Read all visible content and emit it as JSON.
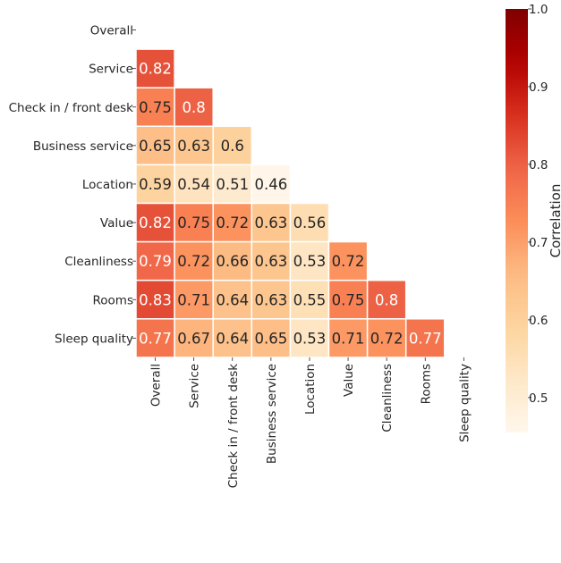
{
  "chart_data": {
    "type": "heatmap",
    "title": "",
    "xlabel": "",
    "ylabel": "",
    "rows": [
      "Overall",
      "Service",
      "Check in / front desk",
      "Business service",
      "Location",
      "Value",
      "Cleanliness",
      "Rooms",
      "Sleep quality"
    ],
    "columns": [
      "Overall",
      "Service",
      "Check in / front desk",
      "Business service",
      "Location",
      "Value",
      "Cleanliness",
      "Rooms",
      "Sleep quality"
    ],
    "values": [
      [],
      [
        0.82
      ],
      [
        0.75,
        0.8
      ],
      [
        0.65,
        0.63,
        0.6
      ],
      [
        0.59,
        0.54,
        0.51,
        0.46
      ],
      [
        0.82,
        0.75,
        0.72,
        0.63,
        0.56
      ],
      [
        0.79,
        0.72,
        0.66,
        0.63,
        0.53,
        0.72
      ],
      [
        0.83,
        0.71,
        0.64,
        0.63,
        0.55,
        0.75,
        0.8
      ],
      [
        0.77,
        0.67,
        0.64,
        0.65,
        0.53,
        0.71,
        0.72,
        0.77
      ]
    ],
    "mask": "upper triangle including diagonal",
    "colorbar": {
      "label": "Correlation",
      "range": [
        0.455,
        1.0
      ],
      "ticks": [
        "0.5",
        "0.6",
        "0.7",
        "0.8",
        "0.9",
        "1.0"
      ],
      "colormap": "OrRd",
      "position": "right"
    },
    "colors": {
      "cell_border": "#ffffff",
      "text_dark": "#262626",
      "text_light": "#ffffff"
    }
  }
}
